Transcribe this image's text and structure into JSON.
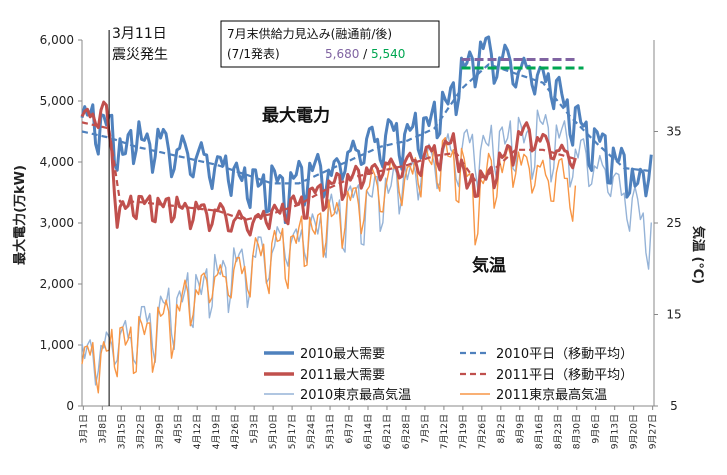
{
  "chart_data": {
    "type": "line",
    "y_left": {
      "label": "最大電力(万kW)",
      "ticks": [
        "0",
        "1,000",
        "2,000",
        "3,000",
        "4,000",
        "5,000",
        "6,000"
      ],
      "range": [
        0,
        6000
      ]
    },
    "y_right": {
      "label": "気温 (℃)",
      "ticks": [
        "5",
        "15",
        "25",
        "35"
      ],
      "range": [
        5,
        45
      ]
    },
    "x_ticks": [
      "3月1日",
      "3月8日",
      "3月15日",
      "3月22日",
      "3月29日",
      "4月5日",
      "4月12日",
      "4月19日",
      "4月26日",
      "5月3日",
      "5月10日",
      "5月17日",
      "5月24日",
      "5月31日",
      "6月7日",
      "6月14日",
      "6月21日",
      "6月28日",
      "7月5日",
      "7月12日",
      "7月19日",
      "7月26日",
      "8月2日",
      "8月9日",
      "8月16日",
      "8月23日",
      "8月30日",
      "9月6日",
      "9月13日",
      "9月20日",
      "9月27日"
    ],
    "event": {
      "line1": "3月11日",
      "line2": "震災発生",
      "day": 10
    },
    "label_power": "最大電力",
    "label_temp": "気温",
    "forecast_box": {
      "line1": "7月末供給力見込み(融通前/後)",
      "line2": "(7/1発表)",
      "val_before": "5,680",
      "separator": " / ",
      "val_after": "5,540",
      "value_before": 5680,
      "value_after": 5540,
      "start_day": 140,
      "end_day": 182,
      "color_before": "#8064a2",
      "color_after": "#00a651"
    },
    "series": [
      {
        "name": "2010最大需要",
        "color": "#4f81bd",
        "axis": "left",
        "style": "solid",
        "weight": "bold",
        "knots": [
          [
            0,
            4600
          ],
          [
            5,
            4700
          ],
          [
            10,
            4550
          ],
          [
            15,
            4100
          ],
          [
            20,
            4450
          ],
          [
            25,
            4250
          ],
          [
            30,
            4350
          ],
          [
            35,
            4100
          ],
          [
            40,
            4150
          ],
          [
            45,
            4000
          ],
          [
            50,
            3950
          ],
          [
            55,
            3850
          ],
          [
            60,
            3700
          ],
          [
            65,
            3600
          ],
          [
            70,
            3650
          ],
          [
            75,
            3550
          ],
          [
            80,
            3700
          ],
          [
            85,
            3900
          ],
          [
            90,
            3750
          ],
          [
            95,
            3950
          ],
          [
            100,
            4150
          ],
          [
            105,
            4300
          ],
          [
            110,
            4350
          ],
          [
            115,
            4450
          ],
          [
            120,
            4400
          ],
          [
            125,
            4550
          ],
          [
            130,
            4700
          ],
          [
            135,
            5000
          ],
          [
            140,
            5400
          ],
          [
            145,
            5750
          ],
          [
            150,
            5800
          ],
          [
            155,
            5650
          ],
          [
            160,
            5550
          ],
          [
            165,
            5450
          ],
          [
            170,
            5400
          ],
          [
            175,
            5200
          ],
          [
            180,
            4800
          ],
          [
            185,
            4500
          ],
          [
            190,
            4300
          ],
          [
            195,
            4100
          ],
          [
            200,
            3900
          ],
          [
            205,
            3600
          ],
          [
            210,
            3950
          ]
        ],
        "amp": 360
      },
      {
        "name": "2010平日（移動平均）",
        "color": "#4f81bd",
        "axis": "left",
        "style": "dashed",
        "weight": "normal",
        "knots": [
          [
            0,
            4500
          ],
          [
            10,
            4400
          ],
          [
            20,
            4250
          ],
          [
            30,
            4150
          ],
          [
            40,
            4050
          ],
          [
            50,
            3950
          ],
          [
            60,
            3800
          ],
          [
            70,
            3650
          ],
          [
            80,
            3650
          ],
          [
            90,
            3850
          ],
          [
            100,
            4050
          ],
          [
            110,
            4250
          ],
          [
            120,
            4350
          ],
          [
            130,
            4550
          ],
          [
            140,
            5200
          ],
          [
            150,
            5600
          ],
          [
            160,
            5450
          ],
          [
            170,
            5300
          ],
          [
            180,
            4750
          ],
          [
            190,
            4300
          ],
          [
            200,
            3900
          ],
          [
            210,
            3850
          ]
        ],
        "amp": 0
      },
      {
        "name": "2011最大需要",
        "color": "#c0504d",
        "axis": "left",
        "style": "solid",
        "weight": "bold",
        "knots": [
          [
            0,
            4700
          ],
          [
            5,
            4800
          ],
          [
            9,
            4800
          ],
          [
            11,
            4100
          ],
          [
            13,
            3250
          ],
          [
            16,
            3150
          ],
          [
            20,
            3400
          ],
          [
            25,
            3250
          ],
          [
            30,
            3300
          ],
          [
            40,
            3200
          ],
          [
            50,
            3150
          ],
          [
            60,
            3000
          ],
          [
            65,
            3050
          ],
          [
            70,
            3150
          ],
          [
            80,
            3300
          ],
          [
            90,
            3550
          ],
          [
            100,
            3750
          ],
          [
            110,
            3900
          ],
          [
            120,
            3950
          ],
          [
            130,
            4150
          ],
          [
            138,
            4300
          ],
          [
            142,
            3600
          ],
          [
            148,
            3700
          ],
          [
            155,
            4000
          ],
          [
            160,
            4350
          ],
          [
            165,
            4500
          ],
          [
            170,
            4300
          ],
          [
            175,
            4200
          ],
          [
            182,
            4050
          ]
        ],
        "amp": 220
      },
      {
        "name": "2011平日（移動平均）",
        "color": "#c0504d",
        "axis": "left",
        "style": "dashed",
        "weight": "normal",
        "knots": [
          [
            0,
            4650
          ],
          [
            10,
            4550
          ],
          [
            14,
            3350
          ],
          [
            20,
            3350
          ],
          [
            30,
            3300
          ],
          [
            40,
            3250
          ],
          [
            50,
            3200
          ],
          [
            60,
            3050
          ],
          [
            70,
            3150
          ],
          [
            80,
            3300
          ],
          [
            90,
            3550
          ],
          [
            100,
            3750
          ],
          [
            110,
            3850
          ],
          [
            120,
            3950
          ],
          [
            130,
            4100
          ],
          [
            138,
            4150
          ],
          [
            145,
            3700
          ],
          [
            150,
            3800
          ],
          [
            160,
            4200
          ],
          [
            170,
            4200
          ],
          [
            182,
            4050
          ]
        ],
        "amp": 0
      },
      {
        "name": "2010東京最高気温",
        "color": "#95b3d7",
        "axis": "right",
        "style": "solid",
        "weight": "normal",
        "knots": [
          [
            0,
            11
          ],
          [
            5,
            10
          ],
          [
            10,
            12
          ],
          [
            15,
            12
          ],
          [
            20,
            13
          ],
          [
            25,
            14
          ],
          [
            30,
            15
          ],
          [
            35,
            16
          ],
          [
            40,
            17
          ],
          [
            45,
            18
          ],
          [
            50,
            19
          ],
          [
            55,
            20
          ],
          [
            60,
            20
          ],
          [
            65,
            21
          ],
          [
            70,
            22
          ],
          [
            75,
            23
          ],
          [
            80,
            23
          ],
          [
            85,
            24
          ],
          [
            90,
            25
          ],
          [
            95,
            26
          ],
          [
            100,
            27
          ],
          [
            105,
            27
          ],
          [
            110,
            28
          ],
          [
            115,
            29
          ],
          [
            120,
            30
          ],
          [
            125,
            31
          ],
          [
            130,
            32
          ],
          [
            135,
            32
          ],
          [
            140,
            33
          ],
          [
            145,
            33
          ],
          [
            150,
            33
          ],
          [
            155,
            34
          ],
          [
            160,
            34
          ],
          [
            165,
            34
          ],
          [
            170,
            35
          ],
          [
            175,
            34
          ],
          [
            180,
            33
          ],
          [
            185,
            32
          ],
          [
            190,
            31
          ],
          [
            195,
            30
          ],
          [
            200,
            28
          ],
          [
            205,
            26
          ],
          [
            210,
            24
          ]
        ],
        "amp": 3.2
      },
      {
        "name": "2011東京最高気温",
        "color": "#f79646",
        "axis": "right",
        "style": "solid",
        "weight": "normal",
        "knots": [
          [
            0,
            10
          ],
          [
            5,
            10
          ],
          [
            10,
            11
          ],
          [
            15,
            12
          ],
          [
            20,
            12
          ],
          [
            25,
            13
          ],
          [
            30,
            14
          ],
          [
            35,
            15
          ],
          [
            40,
            17
          ],
          [
            45,
            18
          ],
          [
            50,
            19
          ],
          [
            55,
            19
          ],
          [
            60,
            20
          ],
          [
            65,
            21
          ],
          [
            70,
            22
          ],
          [
            75,
            22
          ],
          [
            80,
            23
          ],
          [
            85,
            24
          ],
          [
            90,
            25
          ],
          [
            95,
            26
          ],
          [
            100,
            27
          ],
          [
            105,
            28
          ],
          [
            110,
            29
          ],
          [
            115,
            30
          ],
          [
            120,
            30
          ],
          [
            125,
            31
          ],
          [
            130,
            32
          ],
          [
            135,
            32
          ],
          [
            140,
            31
          ],
          [
            145,
            27
          ],
          [
            150,
            30
          ],
          [
            155,
            31
          ],
          [
            160,
            32
          ],
          [
            165,
            31
          ],
          [
            170,
            30
          ],
          [
            175,
            30
          ],
          [
            182,
            29
          ]
        ],
        "amp": 3.0
      }
    ]
  }
}
